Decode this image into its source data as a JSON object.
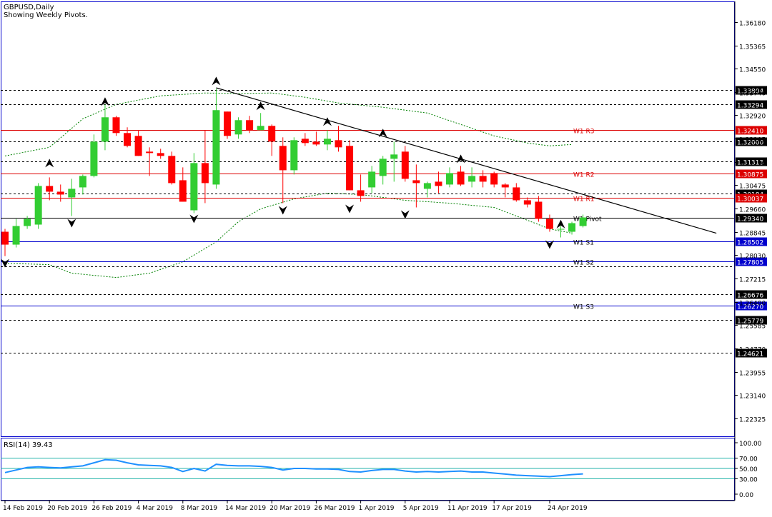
{
  "header": {
    "title": "GBPUSD,Daily",
    "subtitle": "Showing Weekly Pivots."
  },
  "colors": {
    "bull": "#32CD32",
    "bear": "#FF0000",
    "pivot_line": "#0000CD",
    "resistance_line": "#DC0000",
    "frame": "#0000CD",
    "dotted": "#000000",
    "band": "#008000",
    "rsi_line": "#1E90FF",
    "rsi_level": "#20B2AA",
    "label_box": "#000000",
    "pivot_label_box": "#0000CD",
    "r_label_box": "#DC0000"
  },
  "rsi": {
    "label": "RSI(14) 39.43",
    "ticks": [
      "100.00",
      "70.00",
      "50.00",
      "30.00",
      "0.00"
    ]
  },
  "chart_data": {
    "type": "candlestick",
    "symbol": "GBPUSD",
    "timeframe": "Daily",
    "ylim": [
      1.217,
      1.369
    ],
    "y_ticks": [
      "1.36180",
      "1.35365",
      "1.34550",
      "1.33740",
      "1.32920",
      "1.32105",
      "1.31290",
      "1.30475",
      "1.29660",
      "1.28845",
      "1.28030",
      "1.27215",
      "1.26400",
      "1.25585",
      "1.24770",
      "1.23955",
      "1.23140",
      "1.22325"
    ],
    "x_labels": [
      {
        "label": "14 Feb 2019",
        "index": 0
      },
      {
        "label": "20 Feb 2019",
        "index": 4
      },
      {
        "label": "26 Feb 2019",
        "index": 8
      },
      {
        "label": "4 Mar 2019",
        "index": 12
      },
      {
        "label": "8 Mar 2019",
        "index": 16
      },
      {
        "label": "14 Mar 2019",
        "index": 20
      },
      {
        "label": "20 Mar 2019",
        "index": 24
      },
      {
        "label": "26 Mar 2019",
        "index": 28
      },
      {
        "label": "1 Apr 2019",
        "index": 32
      },
      {
        "label": "5 Apr 2019",
        "index": 36
      },
      {
        "label": "11 Apr 2019",
        "index": 40
      },
      {
        "label": "17 Apr 2019",
        "index": 44
      },
      {
        "label": "24 Apr 2019",
        "index": 49
      }
    ],
    "candles": [
      {
        "o": 1.2885,
        "h": 1.2895,
        "l": 1.28,
        "c": 1.284
      },
      {
        "o": 1.284,
        "h": 1.293,
        "l": 1.283,
        "c": 1.2905
      },
      {
        "o": 1.2905,
        "h": 1.294,
        "l": 1.2895,
        "c": 1.293
      },
      {
        "o": 1.291,
        "h": 1.3055,
        "l": 1.2895,
        "c": 1.3045
      },
      {
        "o": 1.3045,
        "h": 1.3075,
        "l": 1.2995,
        "c": 1.3025
      },
      {
        "o": 1.3025,
        "h": 1.305,
        "l": 1.299,
        "c": 1.3015
      },
      {
        "o": 1.3005,
        "h": 1.307,
        "l": 1.294,
        "c": 1.3035
      },
      {
        "o": 1.304,
        "h": 1.3085,
        "l": 1.3015,
        "c": 1.308
      },
      {
        "o": 1.308,
        "h": 1.3225,
        "l": 1.3075,
        "c": 1.32
      },
      {
        "o": 1.32,
        "h": 1.333,
        "l": 1.317,
        "c": 1.3285
      },
      {
        "o": 1.3285,
        "h": 1.329,
        "l": 1.322,
        "c": 1.323
      },
      {
        "o": 1.323,
        "h": 1.325,
        "l": 1.318,
        "c": 1.3185
      },
      {
        "o": 1.322,
        "h": 1.324,
        "l": 1.315,
        "c": 1.315
      },
      {
        "o": 1.3165,
        "h": 1.318,
        "l": 1.308,
        "c": 1.316
      },
      {
        "o": 1.316,
        "h": 1.3175,
        "l": 1.314,
        "c": 1.315
      },
      {
        "o": 1.315,
        "h": 1.3165,
        "l": 1.305,
        "c": 1.3055
      },
      {
        "o": 1.3065,
        "h": 1.311,
        "l": 1.299,
        "c": 1.299
      },
      {
        "o": 1.296,
        "h": 1.316,
        "l": 1.295,
        "c": 1.3125
      },
      {
        "o": 1.3125,
        "h": 1.324,
        "l": 1.2985,
        "c": 1.3055
      },
      {
        "o": 1.305,
        "h": 1.3385,
        "l": 1.3035,
        "c": 1.331
      },
      {
        "o": 1.3305,
        "h": 1.3305,
        "l": 1.321,
        "c": 1.322
      },
      {
        "o": 1.3225,
        "h": 1.3285,
        "l": 1.321,
        "c": 1.3275
      },
      {
        "o": 1.3275,
        "h": 1.329,
        "l": 1.323,
        "c": 1.324
      },
      {
        "o": 1.324,
        "h": 1.33,
        "l": 1.324,
        "c": 1.3255
      },
      {
        "o": 1.3255,
        "h": 1.326,
        "l": 1.315,
        "c": 1.32
      },
      {
        "o": 1.3185,
        "h": 1.3215,
        "l": 1.2985,
        "c": 1.31
      },
      {
        "o": 1.31,
        "h": 1.3215,
        "l": 1.3085,
        "c": 1.3205
      },
      {
        "o": 1.321,
        "h": 1.323,
        "l": 1.3185,
        "c": 1.3195
      },
      {
        "o": 1.32,
        "h": 1.3235,
        "l": 1.3185,
        "c": 1.319
      },
      {
        "o": 1.319,
        "h": 1.324,
        "l": 1.317,
        "c": 1.321
      },
      {
        "o": 1.3205,
        "h": 1.3255,
        "l": 1.3165,
        "c": 1.318
      },
      {
        "o": 1.3185,
        "h": 1.3205,
        "l": 1.303,
        "c": 1.303
      },
      {
        "o": 1.303,
        "h": 1.3085,
        "l": 1.299,
        "c": 1.301
      },
      {
        "o": 1.304,
        "h": 1.3115,
        "l": 1.302,
        "c": 1.3095
      },
      {
        "o": 1.308,
        "h": 1.315,
        "l": 1.305,
        "c": 1.314
      },
      {
        "o": 1.314,
        "h": 1.32,
        "l": 1.306,
        "c": 1.3155
      },
      {
        "o": 1.3165,
        "h": 1.3185,
        "l": 1.306,
        "c": 1.307
      },
      {
        "o": 1.3065,
        "h": 1.312,
        "l": 1.297,
        "c": 1.3055
      },
      {
        "o": 1.3035,
        "h": 1.306,
        "l": 1.3005,
        "c": 1.3055
      },
      {
        "o": 1.306,
        "h": 1.3095,
        "l": 1.302,
        "c": 1.3045
      },
      {
        "o": 1.305,
        "h": 1.311,
        "l": 1.304,
        "c": 1.309
      },
      {
        "o": 1.3095,
        "h": 1.3115,
        "l": 1.3045,
        "c": 1.305
      },
      {
        "o": 1.306,
        "h": 1.311,
        "l": 1.304,
        "c": 1.308
      },
      {
        "o": 1.308,
        "h": 1.31,
        "l": 1.304,
        "c": 1.306
      },
      {
        "o": 1.309,
        "h": 1.3095,
        "l": 1.304,
        "c": 1.305
      },
      {
        "o": 1.305,
        "h": 1.3055,
        "l": 1.3005,
        "c": 1.304
      },
      {
        "o": 1.304,
        "h": 1.3055,
        "l": 1.299,
        "c": 1.2995
      },
      {
        "o": 1.2995,
        "h": 1.3005,
        "l": 1.297,
        "c": 1.298
      },
      {
        "o": 1.299,
        "h": 1.301,
        "l": 1.292,
        "c": 1.293
      },
      {
        "o": 1.293,
        "h": 1.2945,
        "l": 1.2885,
        "c": 1.2895
      },
      {
        "o": 1.2895,
        "h": 1.2905,
        "l": 1.2865,
        "c": 1.2895
      },
      {
        "o": 1.2885,
        "h": 1.292,
        "l": 1.2875,
        "c": 1.2915
      },
      {
        "o": 1.2905,
        "h": 1.2945,
        "l": 1.29,
        "c": 1.2935
      }
    ],
    "horizontal_lines": [
      {
        "value": 1.33804,
        "label": "1.33804",
        "style": "dotted"
      },
      {
        "value": 1.33294,
        "label": "1.33294",
        "style": "dotted"
      },
      {
        "value": 1.3241,
        "label": "1.32410",
        "style": "solid-red",
        "name": "W1 R3"
      },
      {
        "value": 1.32,
        "label": "1.32000",
        "style": "dotted"
      },
      {
        "value": 1.31313,
        "label": "1.31313",
        "style": "dotted"
      },
      {
        "value": 1.30875,
        "label": "1.30875",
        "style": "solid-red",
        "name": "W1 R2"
      },
      {
        "value": 1.30184,
        "label": "1.30184",
        "style": "dotted"
      },
      {
        "value": 1.30037,
        "label": "1.30037",
        "style": "solid-red",
        "name": "W1 R1"
      },
      {
        "value": 1.2934,
        "label": "1.29340",
        "style": "solid-black",
        "name": "W1 Pivot"
      },
      {
        "value": 1.28502,
        "label": "1.28502",
        "style": "solid-blue",
        "name": "W1 S1"
      },
      {
        "value": 1.27805,
        "label": "1.27805",
        "style": "solid-blue",
        "name": "W1 S2"
      },
      {
        "value": 1.2764,
        "label": "",
        "style": "dotted"
      },
      {
        "value": 1.26676,
        "label": "1.26676",
        "style": "dotted"
      },
      {
        "value": 1.2627,
        "label": "1.26270",
        "style": "solid-blue",
        "name": "W1 S3"
      },
      {
        "value": 1.25779,
        "label": "1.25779",
        "style": "dotted"
      },
      {
        "value": 1.24621,
        "label": "1.24621",
        "style": "dotted"
      }
    ],
    "trendline": {
      "from": {
        "index": 19,
        "value": 1.3388
      },
      "to": {
        "index": 64,
        "value": 1.288
      }
    },
    "bands": {
      "upper": [
        [
          0,
          1.315
        ],
        [
          4,
          1.318
        ],
        [
          7,
          1.328
        ],
        [
          10,
          1.333
        ],
        [
          14,
          1.336
        ],
        [
          18,
          1.337
        ],
        [
          21,
          1.3368
        ],
        [
          24,
          1.337
        ],
        [
          27,
          1.3355
        ],
        [
          30,
          1.3335
        ],
        [
          34,
          1.332
        ],
        [
          38,
          1.33
        ],
        [
          41,
          1.326
        ],
        [
          44,
          1.322
        ],
        [
          47,
          1.3195
        ],
        [
          49,
          1.3185
        ],
        [
          51,
          1.319
        ]
      ],
      "lower": [
        [
          0,
          1.2775
        ],
        [
          4,
          1.277
        ],
        [
          6,
          1.274
        ],
        [
          10,
          1.2725
        ],
        [
          13,
          1.274
        ],
        [
          16,
          1.278
        ],
        [
          19,
          1.285
        ],
        [
          21,
          1.292
        ],
        [
          23,
          1.2965
        ],
        [
          26,
          1.3
        ],
        [
          29,
          1.302
        ],
        [
          32,
          1.3015
        ],
        [
          36,
          1.2995
        ],
        [
          40,
          1.2985
        ],
        [
          44,
          1.297
        ],
        [
          47,
          1.2925
        ],
        [
          49,
          1.2895
        ],
        [
          51,
          1.288
        ]
      ]
    },
    "fractals_up": [
      [
        4,
        1.3125
      ],
      [
        9,
        1.334
      ],
      [
        19,
        1.3412
      ],
      [
        23,
        1.3325
      ],
      [
        29,
        1.327
      ],
      [
        34,
        1.323
      ],
      [
        41,
        1.314
      ],
      [
        50,
        1.2912
      ]
    ],
    "fractals_down": [
      [
        0,
        1.2775
      ],
      [
        6,
        1.2915
      ],
      [
        17,
        1.293
      ],
      [
        25,
        1.296
      ],
      [
        31,
        1.2965
      ],
      [
        36,
        1.2945
      ],
      [
        49,
        1.284
      ]
    ],
    "rsi_values": [
      42,
      47,
      52,
      53,
      52,
      51,
      53,
      55,
      61,
      67,
      66,
      61,
      57,
      56,
      55,
      52,
      44,
      50,
      45,
      58,
      56,
      55,
      55,
      54,
      52,
      47,
      50,
      50,
      49,
      49,
      48,
      44,
      43,
      46,
      48,
      48,
      45,
      43,
      44,
      43,
      44,
      45,
      43,
      43,
      41,
      39,
      37,
      36,
      35,
      34,
      36,
      38,
      39.43
    ]
  }
}
